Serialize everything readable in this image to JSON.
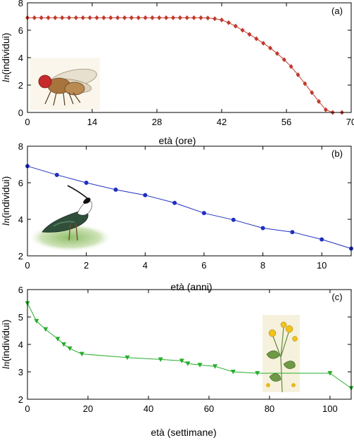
{
  "chart_data": [
    {
      "type": "line",
      "panel_label": "(a)",
      "xlabel": "età (ore)",
      "ylabel": "ln(individui)",
      "ylabel_italic_part": "ln",
      "ylabel_rest": "(individui)",
      "xlim": [
        0,
        70
      ],
      "ylim": [
        0,
        8
      ],
      "xticks": [
        0,
        14,
        28,
        42,
        56,
        70
      ],
      "yticks": [
        0,
        2,
        4,
        6,
        8
      ],
      "marker": "diamond",
      "color": "#c0392b",
      "icon": "fruit-fly-illustration",
      "series": [
        {
          "x": [
            0,
            1.5,
            3,
            4.5,
            6,
            7.5,
            9,
            10.5,
            12,
            13.5,
            15,
            16.5,
            18,
            19.5,
            21,
            22.5,
            24,
            25.5,
            27,
            28.5,
            30,
            31.5,
            33,
            34.5,
            36,
            37.5,
            39,
            40.5,
            42,
            43.5,
            45,
            46.5,
            48,
            49.5,
            51,
            52.5,
            54,
            55.5,
            57,
            58.5,
            60,
            61.5,
            63,
            64.5,
            66,
            68
          ],
          "y": [
            6.91,
            6.91,
            6.91,
            6.91,
            6.91,
            6.91,
            6.91,
            6.91,
            6.91,
            6.91,
            6.91,
            6.91,
            6.91,
            6.91,
            6.91,
            6.91,
            6.91,
            6.91,
            6.91,
            6.91,
            6.91,
            6.91,
            6.91,
            6.91,
            6.91,
            6.91,
            6.89,
            6.84,
            6.75,
            6.55,
            6.3,
            6.0,
            5.7,
            5.38,
            5.05,
            4.7,
            4.3,
            3.85,
            3.35,
            2.75,
            2.1,
            1.45,
            0.8,
            0.2,
            0.0,
            0.0
          ]
        }
      ]
    },
    {
      "type": "line",
      "panel_label": "(b)",
      "xlabel": "età (anni)",
      "ylabel": "ln(individui)",
      "ylabel_italic_part": "ln",
      "ylabel_rest": "(individui)",
      "xlim": [
        0,
        11
      ],
      "ylim": [
        2,
        8
      ],
      "xticks": [
        0,
        2,
        4,
        6,
        8,
        10
      ],
      "yticks": [
        2,
        4,
        6,
        8
      ],
      "marker": "circle",
      "color": "#1f2fbf",
      "icon": "lapwing-bird-illustration",
      "series": [
        {
          "x": [
            0,
            1,
            2,
            3,
            4,
            5,
            6,
            7,
            8,
            9,
            10,
            11
          ],
          "y": [
            6.91,
            6.43,
            6.0,
            5.62,
            5.32,
            4.9,
            4.34,
            3.97,
            3.52,
            3.3,
            2.9,
            2.4
          ]
        }
      ]
    },
    {
      "type": "line",
      "panel_label": "(c)",
      "xlabel": "età (settimane)",
      "ylabel": "ln(individui)",
      "ylabel_italic_part": "ln",
      "ylabel_rest": "(individui)",
      "xlim": [
        0,
        107
      ],
      "ylim": [
        2,
        6
      ],
      "xticks": [
        0,
        20,
        40,
        60,
        80,
        100
      ],
      "yticks": [
        2,
        3,
        4,
        5,
        6
      ],
      "marker": "triangle-down",
      "color": "#27ae2b",
      "icon": "buttercup-plant-illustration",
      "series": [
        {
          "x": [
            0,
            3,
            6,
            10,
            12,
            14,
            18,
            33,
            44,
            51,
            53,
            57,
            62,
            68,
            76,
            100,
            107
          ],
          "y": [
            5.5,
            4.85,
            4.55,
            4.2,
            4.0,
            3.85,
            3.65,
            3.52,
            3.45,
            3.4,
            3.3,
            3.25,
            3.2,
            3.0,
            2.95,
            2.95,
            2.4
          ]
        }
      ]
    }
  ]
}
